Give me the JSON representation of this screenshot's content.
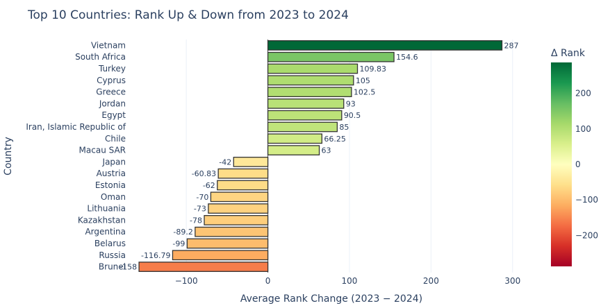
{
  "chart_data": {
    "type": "bar",
    "orientation": "horizontal",
    "title": "Top 10 Countries: Rank Up & Down from 2023 to 2024",
    "xlabel": "Average Rank Change (2023 − 2024)",
    "ylabel": "Country",
    "xlim": [
      -170,
      330
    ],
    "xticks": [
      -100,
      0,
      100,
      200,
      300
    ],
    "xtick_labels": [
      "−100",
      "0",
      "100",
      "200",
      "300"
    ],
    "grid": true,
    "colorbar": {
      "title": "Δ Rank",
      "range": [
        -287,
        287
      ],
      "ticks": [
        -200,
        -100,
        0,
        100,
        200
      ],
      "tick_labels": [
        "−200",
        "−100",
        "0",
        "100",
        "200"
      ],
      "colorscale": "RdYlGn"
    },
    "categories": [
      "Vietnam",
      "South Africa",
      "Turkey",
      "Cyprus",
      "Greece",
      "Jordan",
      "Egypt",
      "Iran, Islamic Republic of",
      "Chile",
      "Macau SAR",
      "Japan",
      "Austria",
      "Estonia",
      "Oman",
      "Lithuania",
      "Kazakhstan",
      "Argentina",
      "Belarus",
      "Russia",
      "Brunei"
    ],
    "values": [
      287,
      154.6,
      109.83,
      105,
      102.5,
      93,
      90.5,
      85,
      66.25,
      63,
      -42,
      -60.83,
      -62,
      -70,
      -73,
      -78,
      -89.2,
      -99,
      -116.79,
      -158
    ],
    "labels": [
      "287",
      "154.6",
      "109.83",
      "105",
      "102.5",
      "93",
      "90.5",
      "85",
      "66.25",
      "63",
      "-42",
      "-60.83",
      "-62",
      "-70",
      "-73",
      "-78",
      "-89.2",
      "-99",
      "-116.79",
      "-158"
    ]
  }
}
